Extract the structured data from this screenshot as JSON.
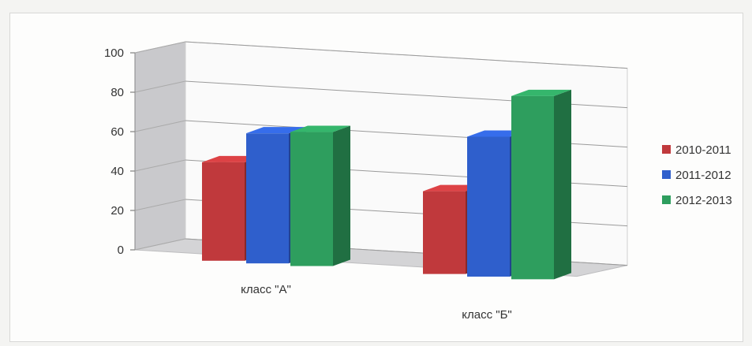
{
  "chart_data": {
    "type": "bar",
    "categories": [
      "класс \"А\"",
      "класс \"Б\""
    ],
    "series": [
      {
        "name": "2010-2011",
        "values": [
          50,
          42
        ],
        "color": "#c0393c"
      },
      {
        "name": "2011-2012",
        "values": [
          66,
          71
        ],
        "color": "#2f5fcc"
      },
      {
        "name": "2012-2013",
        "values": [
          68,
          93
        ],
        "color": "#2e9e5e"
      }
    ],
    "yticks": [
      0,
      20,
      40,
      60,
      80,
      100
    ],
    "ylim": [
      0,
      100
    ],
    "grid": true,
    "legend": "right",
    "title": "",
    "xlabel": "",
    "ylabel": ""
  }
}
